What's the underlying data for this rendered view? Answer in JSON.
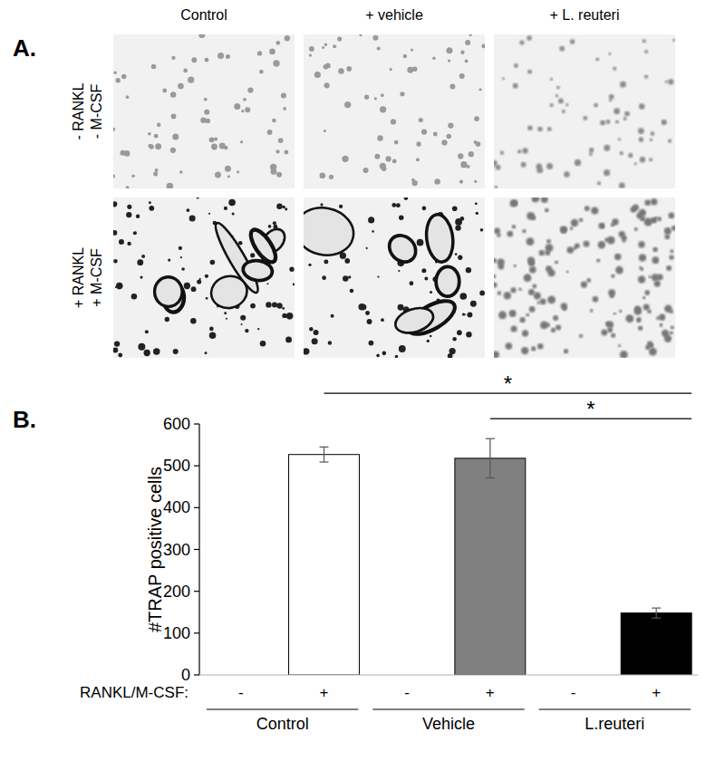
{
  "panel_a": {
    "label": "A.",
    "columns": [
      "Control",
      "+ vehicle",
      "+ L. reuteri"
    ],
    "rows": [
      [
        "- RANKL",
        "- M-CSF"
      ],
      [
        "+ RANKL",
        "+ M-CSF"
      ]
    ]
  },
  "chart_data": {
    "type": "bar",
    "panel_label": "B.",
    "categories": [
      "-",
      "+",
      "-",
      "+",
      "-",
      "+"
    ],
    "group_labels": [
      "Control",
      "Vehicle",
      "L.reuteri"
    ],
    "category_row_label": "RANKL/M-CSF:",
    "values": [
      0,
      527,
      0,
      518,
      0,
      148
    ],
    "errors": [
      0,
      18,
      0,
      47,
      0,
      12
    ],
    "colors": [
      "#ffffff",
      "#ffffff",
      "#808080",
      "#808080",
      "#000000",
      "#000000"
    ],
    "y_label": "#TRAP positive cells",
    "ylim": [
      0,
      600
    ],
    "yticks": [
      0,
      100,
      200,
      300,
      400,
      500,
      600
    ],
    "grid": false,
    "annotations": [
      {
        "text": "*",
        "from": 1,
        "to": 5
      },
      {
        "text": "*",
        "from": 3,
        "to": 5
      }
    ]
  }
}
